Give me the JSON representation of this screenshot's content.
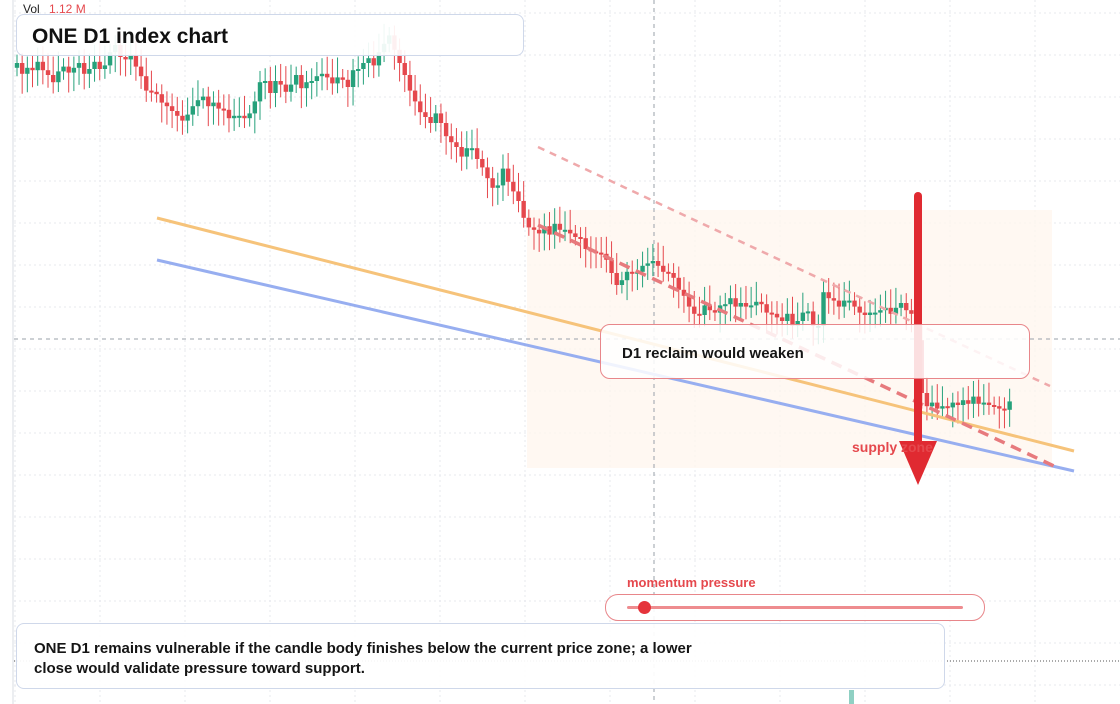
{
  "volume": {
    "label": "Vol",
    "value": "1.12 M"
  },
  "title": "ONE D1 index chart",
  "callout": "D1 reclaim would weaken",
  "zone_label": "supply zone",
  "momentum_label": "momentum pressure",
  "momentum_level": 0.05,
  "note": "ONE D1 remains vulnerable if the candle body finishes below the current price zone; a lower close would validate pressure toward support.",
  "colors": {
    "bull": "#26a17b",
    "bear": "#e5484d",
    "orange_line": "#f6c37a",
    "blue_line": "#97aef0",
    "dashed": "#e77a7d",
    "arrow": "#e02a31"
  },
  "chart_data": {
    "type": "candlestick",
    "title": "ONE D1 index chart",
    "closes": [
      0.85,
      0.76,
      0.81,
      0.79,
      0.86,
      0.79,
      0.75,
      0.69,
      0.78,
      0.82,
      0.77,
      0.81,
      0.85,
      0.76,
      0.8,
      0.86,
      0.8,
      0.83,
      0.94,
      1.0,
      0.9,
      0.88,
      0.92,
      0.82,
      0.74,
      0.62,
      0.61,
      0.59,
      0.52,
      0.49,
      0.45,
      0.41,
      0.37,
      0.42,
      0.49,
      0.54,
      0.57,
      0.49,
      0.52,
      0.47,
      0.46,
      0.39,
      0.41,
      0.41,
      0.39,
      0.43,
      0.53,
      0.69,
      0.7,
      0.6,
      0.7,
      0.67,
      0.61,
      0.67,
      0.75,
      0.64,
      0.69,
      0.7,
      0.74,
      0.76,
      0.73,
      0.68,
      0.73,
      0.71,
      0.65,
      0.79,
      0.8,
      0.85,
      0.89,
      0.83,
      0.94,
      1.01,
      1.08,
      0.96,
      0.85,
      0.75,
      0.62,
      0.53,
      0.44,
      0.4,
      0.35,
      0.43,
      0.35,
      0.24,
      0.19,
      0.15,
      0.07,
      0.14,
      0.14,
      0.05,
      -0.02,
      -0.11,
      -0.19,
      -0.17,
      -0.03,
      -0.14,
      -0.22,
      -0.3,
      -0.44,
      -0.52,
      -0.54,
      -0.57,
      -0.51,
      -0.58,
      -0.49,
      -0.54,
      -0.54,
      -0.57,
      -0.6,
      -0.61,
      -0.7,
      -0.72,
      -0.73,
      -0.74,
      -0.79,
      -0.9,
      -1.0,
      -0.96,
      -0.89,
      -0.9,
      -0.89,
      -0.84,
      -0.82,
      -0.8,
      -0.84,
      -0.89,
      -0.9,
      -0.94,
      -1.04,
      -1.09,
      -1.18,
      -1.24,
      -1.25,
      -1.17,
      -1.21,
      -1.23,
      -1.17,
      -1.16,
      -1.11,
      -1.18,
      -1.15,
      -1.18,
      -1.17,
      -1.14,
      -1.16,
      -1.23,
      -1.24,
      -1.27,
      -1.3,
      -1.24,
      -1.34,
      -1.3,
      -1.23,
      -1.22,
      -1.34,
      -1.34,
      -1.06,
      -1.11,
      -1.13,
      -1.18,
      -1.13,
      -1.13,
      -1.18,
      -1.23,
      -1.25,
      -1.23,
      -1.23,
      -1.21,
      -1.19,
      -1.24,
      -1.19,
      -1.15,
      -1.21,
      -1.24,
      -1.46,
      -1.9,
      -2.01,
      -1.98,
      -2.03,
      -2.01,
      -2.02,
      -1.98,
      -2.0,
      -1.96,
      -1.99,
      -1.93,
      -1.99,
      -1.98,
      -2.0,
      -2.01,
      -2.03,
      -2.04,
      -1.97
    ]
  }
}
